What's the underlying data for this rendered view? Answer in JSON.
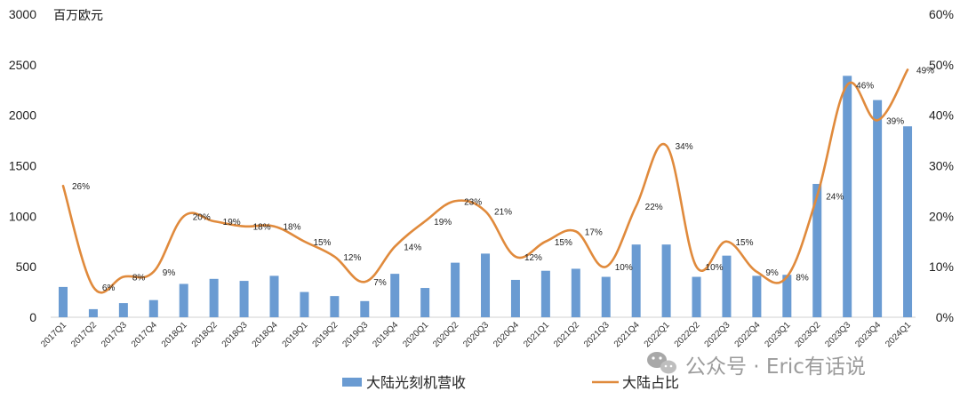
{
  "chart_data": {
    "type": "bar+line",
    "unit_label": "百万欧元",
    "categories": [
      "2017Q1",
      "2017Q2",
      "2017Q3",
      "2017Q4",
      "2018Q1",
      "2018Q2",
      "2018Q3",
      "2018Q4",
      "2019Q1",
      "2019Q2",
      "2019Q3",
      "2019Q4",
      "2020Q1",
      "2020Q2",
      "2020Q3",
      "2020Q4",
      "2021Q1",
      "2021Q2",
      "2021Q3",
      "2021Q4",
      "2022Q1",
      "2022Q2",
      "2022Q3",
      "2022Q4",
      "2023Q1",
      "2023Q2",
      "2023Q3",
      "2023Q4",
      "2024Q1"
    ],
    "left_axis": {
      "min": 0,
      "max": 3000,
      "ticks": [
        "0",
        "500",
        "1000",
        "1500",
        "2000",
        "2500",
        "3000"
      ]
    },
    "right_axis": {
      "min": 0,
      "max": 60,
      "ticks": [
        "0%",
        "10%",
        "20%",
        "30%",
        "40%",
        "50%",
        "60%"
      ]
    },
    "series": [
      {
        "name": "大陆光刻机营收",
        "type": "bar",
        "axis": "left",
        "color": "#6a9bd2",
        "values": [
          300,
          80,
          140,
          170,
          330,
          380,
          360,
          410,
          250,
          210,
          160,
          430,
          290,
          540,
          630,
          370,
          460,
          480,
          400,
          720,
          720,
          400,
          610,
          410,
          420,
          1320,
          2390,
          2150,
          1890
        ]
      },
      {
        "name": "大陆占比",
        "type": "line",
        "axis": "right",
        "color": "#e08a3c",
        "values": [
          26,
          6,
          8,
          9,
          20,
          19,
          18,
          18,
          15,
          12,
          7,
          14,
          19,
          23,
          21,
          12,
          15,
          17,
          10,
          22,
          34,
          10,
          15,
          9,
          8,
          24,
          46,
          39,
          49
        ],
        "labels": [
          "26%",
          "6%",
          "8%",
          "9%",
          "20%",
          "19%",
          "18%",
          "18%",
          "15%",
          "12%",
          "7%",
          "14%",
          "19%",
          "23%",
          "21%",
          "12%",
          "15%",
          "17%",
          "10%",
          "22%",
          "34%",
          "10%",
          "15%",
          "9%",
          "8%",
          "24%",
          "46%",
          "39%",
          "49%"
        ]
      }
    ],
    "legend": {
      "position": "bottom"
    },
    "grid": false
  },
  "watermark": {
    "text": "公众号 · Eric有话说",
    "icon": "wechat-icon"
  }
}
